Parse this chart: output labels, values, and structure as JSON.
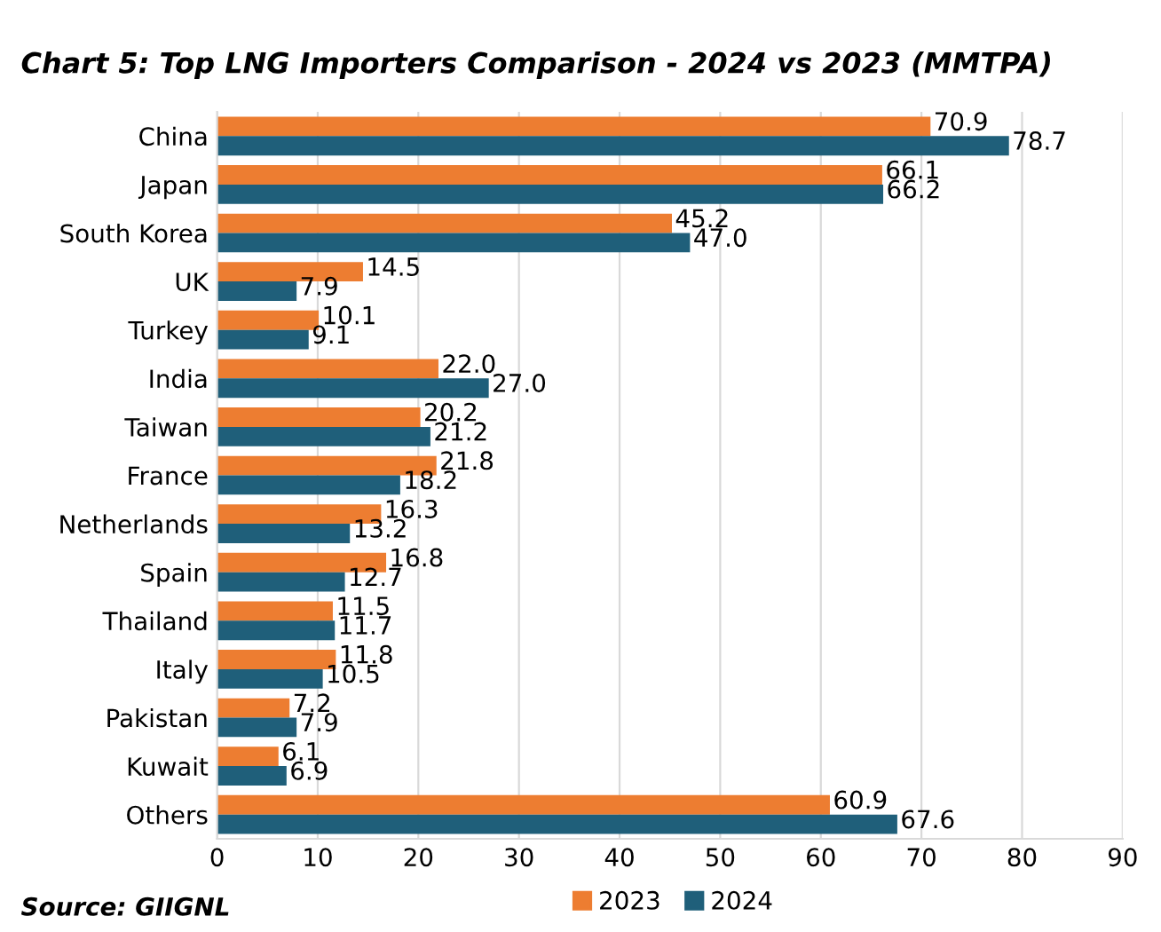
{
  "chart_data": {
    "type": "bar",
    "orientation": "horizontal",
    "title": "Chart 5: Top LNG Importers Comparison - 2024 vs 2023 (MMTPA)",
    "categories": [
      "China",
      "Japan",
      "South Korea",
      "UK",
      "Turkey",
      "India",
      "Taiwan",
      "France",
      "Netherlands",
      "Spain",
      "Thailand",
      "Italy",
      "Pakistan",
      "Kuwait",
      "Others"
    ],
    "series": [
      {
        "name": "2023",
        "color": "#ed7d31",
        "values": [
          70.9,
          66.1,
          45.2,
          14.5,
          10.1,
          22.0,
          20.2,
          21.8,
          16.3,
          16.8,
          11.5,
          11.8,
          7.2,
          6.1,
          60.9
        ],
        "value_labels": [
          "70.9",
          "66.1",
          "45.2",
          "14.5",
          "10.1",
          "22.0",
          "20.2",
          "21.8",
          "16.3",
          "16.8",
          "11.5",
          "11.8",
          "7.2",
          "6.1",
          "60.9"
        ]
      },
      {
        "name": "2024",
        "color": "#1f5f7a",
        "values": [
          78.7,
          66.2,
          47.0,
          7.9,
          9.1,
          27.0,
          21.2,
          18.2,
          13.2,
          12.7,
          11.7,
          10.5,
          7.9,
          6.9,
          67.6
        ],
        "value_labels": [
          "78.7",
          "66.2",
          "47.0",
          "7.9",
          "9.1",
          "27.0",
          "21.2",
          "18.2",
          "13.2",
          "12.7",
          "11.7",
          "10.5",
          "7.9",
          "6.9",
          "67.6"
        ]
      }
    ],
    "xlim": [
      0,
      90
    ],
    "xticks": [
      0,
      10,
      20,
      30,
      40,
      50,
      60,
      70,
      80,
      90
    ],
    "grid": "x",
    "legend": "bottom",
    "annotations": [
      "Source: GIIGNL"
    ]
  }
}
